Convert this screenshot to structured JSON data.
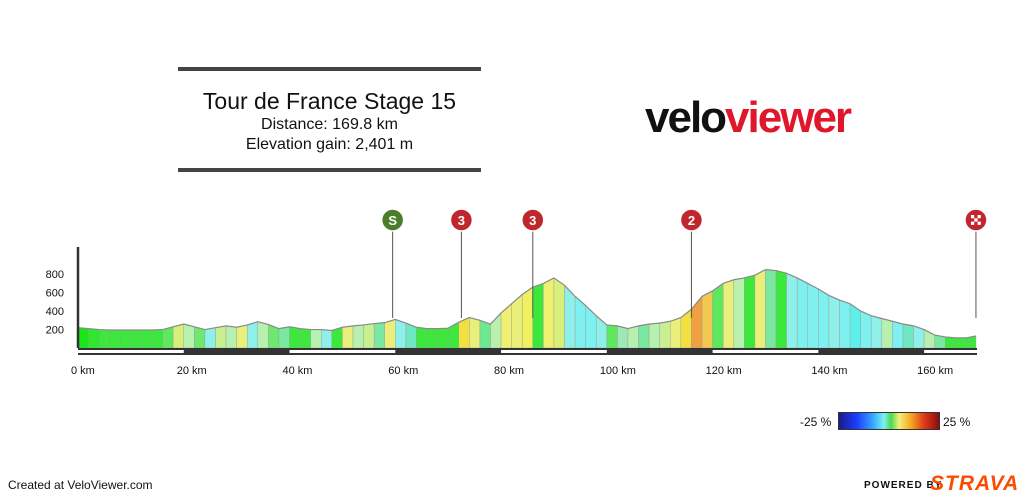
{
  "header": {
    "title": "Tour de France Stage 15",
    "distance": "Distance: 169.8 km",
    "elevation_gain": "Elevation gain: 2,401 m"
  },
  "logo": {
    "part1": "velo",
    "part2": "viewer"
  },
  "colors": {
    "logo_red": "#e0162b",
    "strava_orange": "#fc4c02",
    "axis": "#333333"
  },
  "legend": {
    "low": "-25 %",
    "high": "25 %"
  },
  "footer": {
    "created": "Created at VeloViewer.com",
    "powered": "POWERED BY",
    "strava": "STRAVA"
  },
  "chart_data": {
    "type": "area",
    "xlabel": "",
    "ylabel": "",
    "xlim": [
      0,
      170
    ],
    "ylim": [
      0,
      900
    ],
    "x_ticks": [
      0,
      20,
      40,
      60,
      80,
      100,
      120,
      140,
      160
    ],
    "x_tick_labels": [
      "0 km",
      "20 km",
      "40 km",
      "60 km",
      "80 km",
      "100 km",
      "120 km",
      "140 km",
      "160 km"
    ],
    "y_ticks": [
      200,
      400,
      600,
      800
    ],
    "y_tick_labels": [
      "200",
      "400",
      "600",
      "800"
    ],
    "markers": [
      {
        "km": 59.5,
        "label": "S",
        "kind": "sprint",
        "color": "#4a7d2c"
      },
      {
        "km": 72.5,
        "label": "3",
        "kind": "climb",
        "color": "#c0262d"
      },
      {
        "km": 86,
        "label": "3",
        "kind": "climb",
        "color": "#c0262d"
      },
      {
        "km": 116,
        "label": "2",
        "kind": "climb",
        "color": "#c0262d"
      },
      {
        "km": 169.8,
        "label": "",
        "kind": "finish",
        "color": "#c0262d"
      }
    ],
    "x": [
      0,
      2,
      4,
      6,
      8,
      10,
      12,
      14,
      16,
      18,
      20,
      22,
      24,
      26,
      28,
      30,
      32,
      34,
      36,
      38,
      40,
      42,
      44,
      46,
      48,
      50,
      52,
      54,
      56,
      58,
      60,
      62,
      64,
      66,
      68,
      70,
      72,
      74,
      76,
      78,
      80,
      82,
      84,
      86,
      88,
      90,
      92,
      94,
      96,
      98,
      100,
      102,
      104,
      106,
      108,
      110,
      112,
      114,
      116,
      118,
      120,
      122,
      124,
      126,
      128,
      130,
      132,
      134,
      136,
      138,
      140,
      142,
      144,
      146,
      148,
      150,
      152,
      154,
      156,
      158,
      160,
      162,
      164,
      166,
      168,
      169.8
    ],
    "y": [
      220,
      210,
      200,
      195,
      195,
      195,
      195,
      195,
      200,
      230,
      260,
      230,
      200,
      220,
      240,
      225,
      250,
      285,
      255,
      210,
      230,
      210,
      200,
      200,
      190,
      225,
      240,
      250,
      265,
      275,
      310,
      270,
      225,
      210,
      210,
      215,
      280,
      330,
      300,
      260,
      380,
      480,
      580,
      660,
      700,
      760,
      680,
      560,
      460,
      350,
      250,
      240,
      210,
      240,
      260,
      270,
      290,
      330,
      420,
      560,
      620,
      700,
      740,
      760,
      790,
      850,
      840,
      810,
      760,
      700,
      640,
      570,
      520,
      480,
      400,
      350,
      320,
      290,
      260,
      240,
      200,
      140,
      120,
      110,
      110,
      130
    ],
    "gradient_colors": [
      "#1ae61a",
      "#2ee82e",
      "#3de83d",
      "#3de83d",
      "#3de83d",
      "#3de83d",
      "#3de83d",
      "#3de83d",
      "#5ee85e",
      "#d8f07a",
      "#b8f0b0",
      "#6ee86e",
      "#8ef0e8",
      "#c8f090",
      "#b8f0b0",
      "#e8f07a",
      "#8ef0e8",
      "#b8f0b0",
      "#6ee86e",
      "#7ae8a0",
      "#3de83d",
      "#3de83d",
      "#b8f0b0",
      "#8ef0e8",
      "#3de83d",
      "#e8f07a",
      "#b8f0b0",
      "#c8f090",
      "#7ae8a0",
      "#e8f07a",
      "#8ef0e8",
      "#6ee8c0",
      "#3de83d",
      "#3de83d",
      "#3de83d",
      "#3de83d",
      "#f0e040",
      "#e8f07a",
      "#6ee88e",
      "#b8f0b0",
      "#f0f070",
      "#e8f07a",
      "#f0f060",
      "#3de83d",
      "#f0f070",
      "#d8f07a",
      "#8ef0e8",
      "#7ef0f0",
      "#7ef0f0",
      "#8ef0e8",
      "#5ee85e",
      "#9ee8b8",
      "#b8f0b0",
      "#7ae8a0",
      "#b8f0b0",
      "#c8f090",
      "#e8f07a",
      "#f0e040",
      "#f0a040",
      "#f0c850",
      "#5ee85e",
      "#e8f07a",
      "#b8f0b0",
      "#3de83d",
      "#e8f07a",
      "#7ae8a0",
      "#3de83d",
      "#8ef0e8",
      "#7ef0f0",
      "#7ef0f0",
      "#7ef0f0",
      "#8ef0e8",
      "#7ef0f0",
      "#5ef0e8",
      "#7ef0f0",
      "#8ef0e8",
      "#b8f0b0",
      "#7ef0f0",
      "#6ee8c0",
      "#8ef0e8",
      "#b8f0b0",
      "#7ae8a0",
      "#3de83d",
      "#3de83d",
      "#3de83d"
    ]
  }
}
